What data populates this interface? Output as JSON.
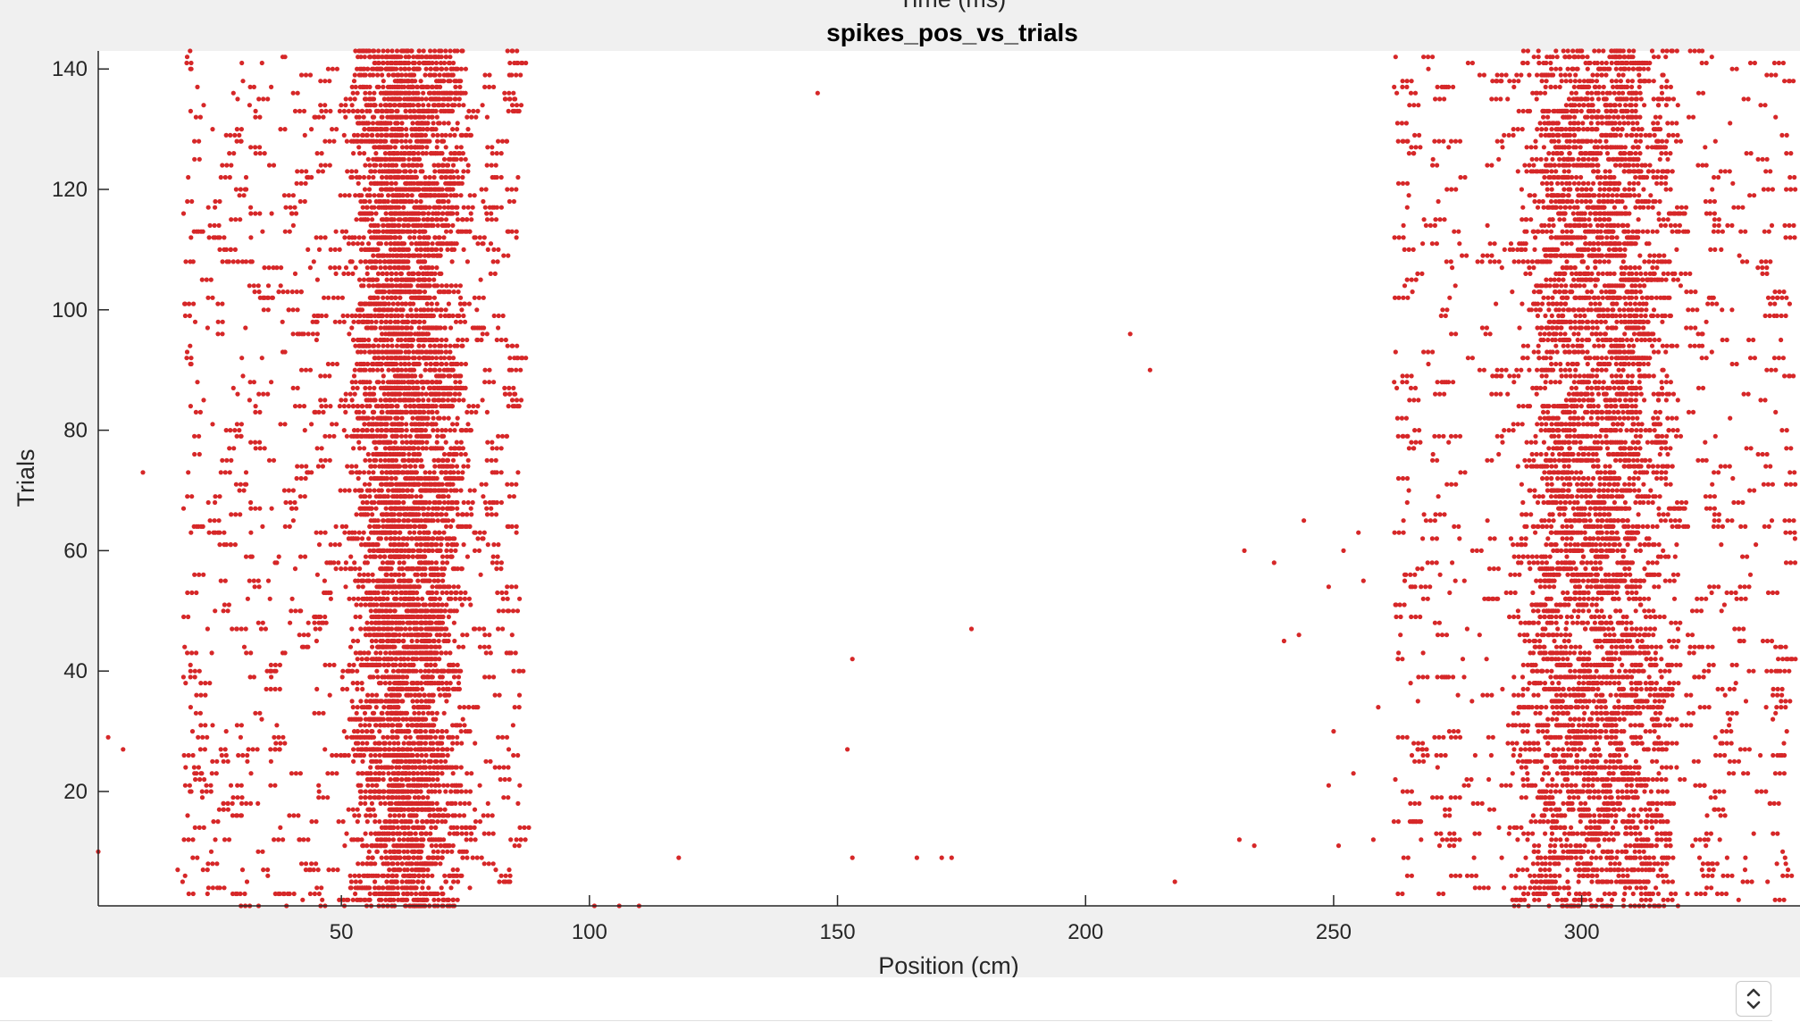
{
  "chart_data": {
    "type": "scatter",
    "title": "spikes_pos_vs_trials",
    "top_label": "Time (ms)",
    "xlabel": "Position (cm)",
    "ylabel": "Trials",
    "xlim": [
      1,
      344
    ],
    "ylim": [
      1,
      143
    ],
    "xticks": [
      50,
      100,
      150,
      200,
      250,
      300
    ],
    "yticks": [
      20,
      40,
      60,
      80,
      100,
      120,
      140
    ],
    "grid": false,
    "marker_color": "#d62728",
    "series": [
      {
        "fields": [
          {
            "x_range": [
              18,
              86
            ],
            "x_core": [
              55,
              70
            ],
            "density": 26
          },
          {
            "x_range": [
              262,
              342
            ],
            "x_core": [
              290,
              315
            ],
            "density": 22
          }
        ],
        "sparse_points": [
          [
            1,
            10
          ],
          [
            3,
            29
          ],
          [
            6,
            27
          ],
          [
            10,
            73
          ],
          [
            17,
            7
          ],
          [
            18,
            5
          ],
          [
            19,
            16
          ],
          [
            146,
            136
          ],
          [
            153,
            42
          ],
          [
            152,
            27
          ],
          [
            118,
            9
          ],
          [
            101,
            1
          ],
          [
            106,
            1
          ],
          [
            110,
            1
          ],
          [
            153,
            9
          ],
          [
            166,
            9
          ],
          [
            171,
            9
          ],
          [
            173,
            9
          ],
          [
            177,
            47
          ],
          [
            209,
            96
          ],
          [
            213,
            90
          ],
          [
            218,
            5
          ],
          [
            231,
            12
          ],
          [
            234,
            11
          ],
          [
            232,
            60
          ],
          [
            238,
            58
          ],
          [
            240,
            45
          ],
          [
            243,
            46
          ],
          [
            244,
            65
          ],
          [
            249,
            54
          ],
          [
            249,
            21
          ],
          [
            250,
            30
          ],
          [
            251,
            11
          ],
          [
            252,
            60
          ],
          [
            254,
            23
          ],
          [
            255,
            63
          ],
          [
            256,
            55
          ],
          [
            258,
            12
          ],
          [
            259,
            34
          ],
          [
            333,
            9
          ],
          [
            334,
            56
          ],
          [
            336,
            26
          ],
          [
            338,
            18
          ],
          [
            341,
            9
          ],
          [
            343,
            62
          ]
        ]
      }
    ]
  },
  "ui": {
    "stepper_icon": "up-down-chevron-icon"
  }
}
